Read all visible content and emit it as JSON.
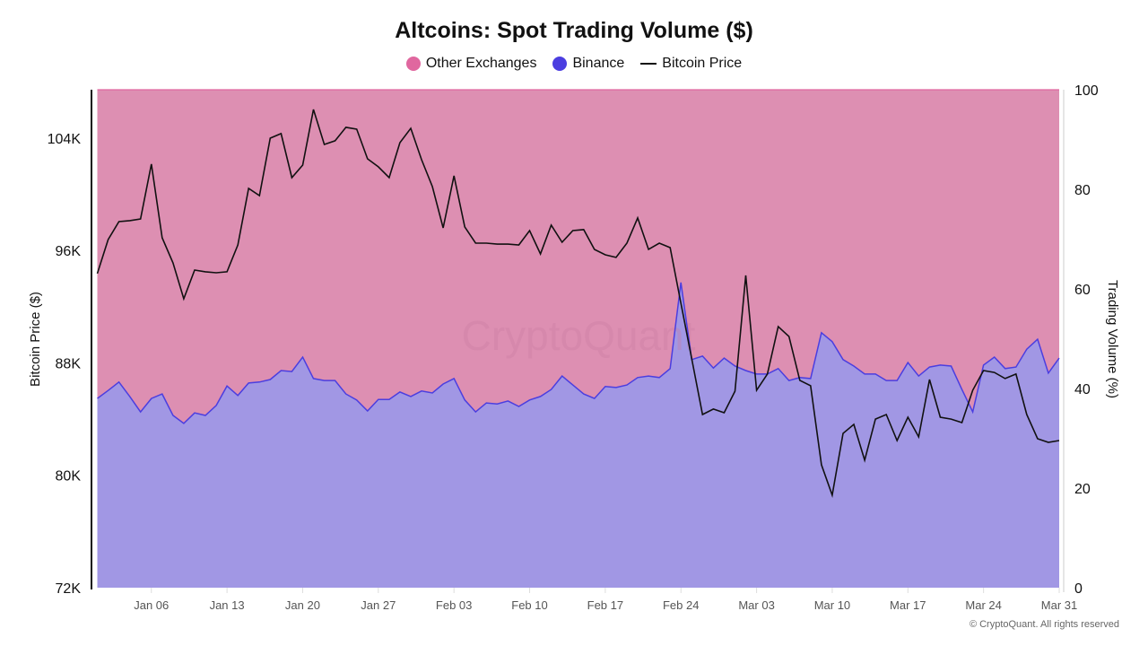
{
  "chart_data": {
    "type": "area",
    "title": "Altcoins: Spot Trading Volume ($)",
    "legend": [
      {
        "name": "Other Exchanges",
        "color": "#e0679f",
        "marker": "dot"
      },
      {
        "name": "Binance",
        "color": "#4b3ee0",
        "marker": "dot"
      },
      {
        "name": "Bitcoin Price",
        "color": "#111111",
        "marker": "line"
      }
    ],
    "legend_position": "top-center",
    "ylabel_left": "Bitcoin Price ($)",
    "ylabel_right": "Trading Volume (%)",
    "ylim_left": [
      72000,
      106000
    ],
    "ylim_right": [
      0,
      100
    ],
    "yticks_left": [
      {
        "value": 72000,
        "label": "72K"
      },
      {
        "value": 80000,
        "label": "80K"
      },
      {
        "value": 88000,
        "label": "88K"
      },
      {
        "value": 96000,
        "label": "96K"
      },
      {
        "value": 104000,
        "label": "104K"
      }
    ],
    "yticks_right": [
      0,
      20,
      40,
      60,
      80,
      100
    ],
    "xticks": [
      "Jan 06",
      "Jan 13",
      "Jan 20",
      "Jan 27",
      "Feb 03",
      "Feb 10",
      "Feb 17",
      "Feb 24",
      "Mar 03",
      "Mar 10",
      "Mar 17",
      "Mar 24",
      "Mar 31"
    ],
    "grid": false,
    "stacked_percent": true,
    "dates": [
      "Jan 01",
      "Jan 02",
      "Jan 03",
      "Jan 04",
      "Jan 05",
      "Jan 06",
      "Jan 07",
      "Jan 08",
      "Jan 09",
      "Jan 10",
      "Jan 11",
      "Jan 12",
      "Jan 13",
      "Jan 14",
      "Jan 15",
      "Jan 16",
      "Jan 17",
      "Jan 18",
      "Jan 19",
      "Jan 20",
      "Jan 21",
      "Jan 22",
      "Jan 23",
      "Jan 24",
      "Jan 25",
      "Jan 26",
      "Jan 27",
      "Jan 28",
      "Jan 29",
      "Jan 30",
      "Jan 31",
      "Feb 01",
      "Feb 02",
      "Feb 03",
      "Feb 04",
      "Feb 05",
      "Feb 06",
      "Feb 07",
      "Feb 08",
      "Feb 09",
      "Feb 10",
      "Feb 11",
      "Feb 12",
      "Feb 13",
      "Feb 14",
      "Feb 15",
      "Feb 16",
      "Feb 17",
      "Feb 18",
      "Feb 19",
      "Feb 20",
      "Feb 21",
      "Feb 22",
      "Feb 23",
      "Feb 24",
      "Feb 25",
      "Feb 26",
      "Feb 27",
      "Feb 28",
      "Mar 01",
      "Mar 02",
      "Mar 03",
      "Mar 04",
      "Mar 05",
      "Mar 06",
      "Mar 07",
      "Mar 08",
      "Mar 09",
      "Mar 10",
      "Mar 11",
      "Mar 12",
      "Mar 13",
      "Mar 14",
      "Mar 15",
      "Mar 16",
      "Mar 17",
      "Mar 18",
      "Mar 19",
      "Mar 20",
      "Mar 21",
      "Mar 22",
      "Mar 23",
      "Mar 24",
      "Mar 25",
      "Mar 26",
      "Mar 27",
      "Mar 28",
      "Mar 29",
      "Mar 30",
      "Mar 31"
    ],
    "series": [
      {
        "name": "Binance",
        "axis": "right",
        "color": "#4b3ee0",
        "fill": "#a197e4",
        "values": [
          38.0,
          39.6,
          41.3,
          38.4,
          35.3,
          38.0,
          38.9,
          34.6,
          33.0,
          35.1,
          34.6,
          36.6,
          40.5,
          38.6,
          41.1,
          41.3,
          41.8,
          43.6,
          43.4,
          46.3,
          42.0,
          41.6,
          41.6,
          38.9,
          37.7,
          35.5,
          37.8,
          37.8,
          39.3,
          38.4,
          39.5,
          39.1,
          40.9,
          42.0,
          37.7,
          35.3,
          37.1,
          36.9,
          37.5,
          36.4,
          37.7,
          38.4,
          39.8,
          42.5,
          40.7,
          38.9,
          38.0,
          40.4,
          40.2,
          40.7,
          42.2,
          42.5,
          42.2,
          44.0,
          61.3,
          45.8,
          46.5,
          44.1,
          46.1,
          44.5,
          43.6,
          42.9,
          42.9,
          44.0,
          41.6,
          42.2,
          42.0,
          51.2,
          49.4,
          45.8,
          44.5,
          42.9,
          42.9,
          41.6,
          41.6,
          45.2,
          42.5,
          44.3,
          44.7,
          44.5,
          39.8,
          35.3,
          44.7,
          46.3,
          44.0,
          44.3,
          47.9,
          49.9,
          43.1,
          46.1
        ]
      },
      {
        "name": "Other Exchanges",
        "axis": "right",
        "color": "#e0679f",
        "fill": "#dd8fb2",
        "values": [
          62.0,
          60.4,
          58.7,
          61.6,
          64.7,
          62.0,
          61.1,
          65.4,
          67.0,
          64.9,
          65.4,
          63.4,
          59.5,
          61.4,
          58.9,
          58.7,
          58.2,
          56.4,
          56.6,
          53.7,
          58.0,
          58.4,
          58.4,
          61.1,
          62.3,
          64.5,
          62.2,
          62.2,
          60.7,
          61.6,
          60.5,
          60.9,
          59.1,
          58.0,
          62.3,
          64.7,
          62.9,
          63.1,
          62.5,
          63.6,
          62.3,
          61.6,
          60.2,
          57.5,
          59.3,
          61.1,
          62.0,
          59.6,
          59.8,
          59.3,
          57.8,
          57.5,
          57.8,
          56.0,
          38.7,
          54.2,
          53.5,
          55.9,
          53.9,
          55.5,
          56.4,
          57.1,
          57.1,
          56.0,
          58.4,
          57.8,
          58.0,
          48.8,
          50.6,
          54.2,
          55.5,
          57.1,
          57.1,
          58.4,
          58.4,
          54.8,
          57.5,
          55.7,
          55.3,
          55.5,
          60.2,
          64.7,
          55.3,
          53.7,
          56.0,
          55.7,
          52.1,
          50.1,
          56.9,
          53.9
        ]
      },
      {
        "name": "Bitcoin Price",
        "axis": "left",
        "color": "#111111",
        "values": [
          94350,
          96770,
          98050,
          98120,
          98240,
          102140,
          96900,
          95110,
          92560,
          94600,
          94480,
          94410,
          94480,
          96390,
          100410,
          99900,
          103990,
          104310,
          101180,
          102070,
          106030,
          103540,
          103800,
          104760,
          104630,
          102520,
          101950,
          101180,
          103670,
          104690,
          102460,
          100540,
          97600,
          101310,
          97670,
          96520,
          96520,
          96450,
          96450,
          96390,
          97410,
          95750,
          97800,
          96580,
          97410,
          97480,
          96070,
          95690,
          95500,
          96520,
          98310,
          96070,
          96520,
          96200,
          92240,
          88280,
          84320,
          84710,
          84450,
          85980,
          94220,
          86050,
          87200,
          90580,
          89880,
          86750,
          86370,
          80750,
          78580,
          82980,
          83620,
          81070,
          84000,
          84320,
          82470,
          84130,
          82730,
          86810,
          84130,
          84000,
          83750,
          86050,
          87450,
          87320,
          86880,
          87200,
          84320,
          82600,
          82340,
          82470
        ]
      }
    ]
  },
  "watermark": "CryptoQuant",
  "footer": "© CryptoQuant. All rights reserved"
}
